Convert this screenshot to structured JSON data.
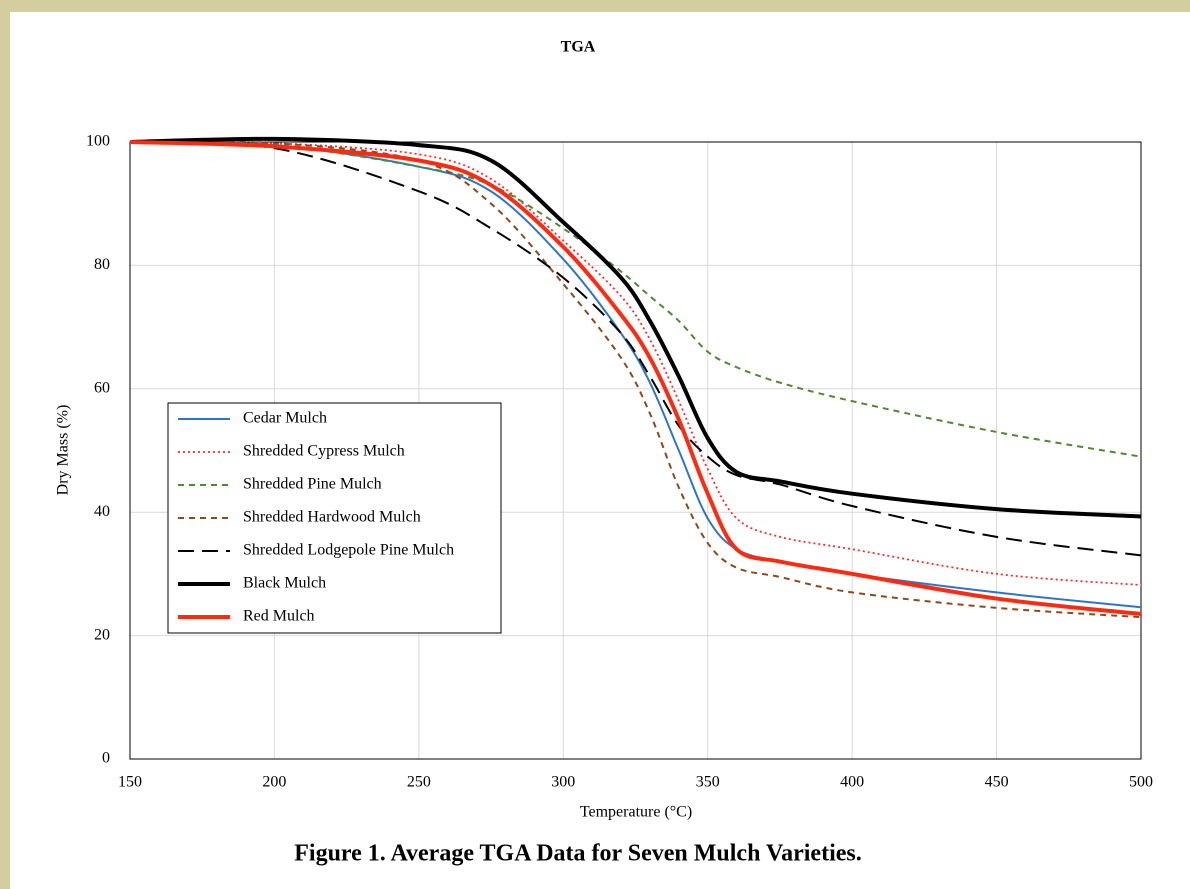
{
  "chart_data": {
    "type": "line",
    "title": "TGA",
    "x_label": "Temperature  (°C)",
    "y_label": "Dry Mass (%)",
    "caption": "Figure 1. Average TGA Data for Seven Mulch Varieties.",
    "x": [
      150,
      200,
      250,
      275,
      300,
      320,
      330,
      340,
      350,
      360,
      375,
      400,
      450,
      500
    ],
    "series": [
      {
        "name": "Cedar Mulch",
        "color": "#2e75c7",
        "line_style": "solid",
        "values": [
          100,
          99.5,
          96,
          92,
          81,
          69,
          61,
          50,
          39,
          34,
          32,
          30,
          27,
          24.6
        ]
      },
      {
        "name": "Shredded Cypress Mulch",
        "color": "#ff2a2a",
        "line_style": "dotted",
        "values": [
          100,
          99.8,
          98,
          94,
          84,
          75,
          68,
          58,
          47,
          39,
          36,
          34,
          30,
          28.2
        ]
      },
      {
        "name": "Shredded Pine Mulch",
        "color": "#4e8a2e",
        "line_style": "dashed",
        "values": [
          100,
          99.5,
          96,
          93,
          86,
          79,
          75,
          71,
          66,
          63.5,
          61,
          58,
          53,
          49
        ]
      },
      {
        "name": "Shredded Hardwood Mulch",
        "color": "#8b4a1c",
        "line_style": "dashed",
        "values": [
          100,
          99.8,
          97,
          90,
          77,
          65,
          56,
          44,
          35,
          31,
          29.5,
          27,
          24.5,
          23
        ]
      },
      {
        "name": "Shredded Lodgepole Pine Mulch",
        "color": "#000000",
        "line_style": "long-dashed",
        "values": [
          100,
          99,
          92,
          86,
          78,
          69,
          62,
          54,
          49,
          46,
          44.5,
          41,
          36,
          33
        ]
      },
      {
        "name": "Black Mulch",
        "color": "#000000",
        "line_style": "bold",
        "values": [
          100,
          100.5,
          99.5,
          97,
          87,
          78,
          71,
          62,
          52,
          46.5,
          45,
          43,
          40.5,
          39.3
        ]
      },
      {
        "name": "Red Mulch",
        "color": "#ff2a10",
        "line_style": "bold",
        "values": [
          100,
          99.3,
          97,
          93,
          83,
          72,
          65,
          55,
          43,
          34,
          32,
          30,
          26,
          23.5
        ]
      }
    ],
    "xlim": [
      150,
      500
    ],
    "xticks": [
      150,
      200,
      250,
      300,
      350,
      400,
      450,
      500
    ],
    "ylim": [
      0,
      100
    ],
    "yticks": [
      0,
      20,
      40,
      60,
      80,
      100
    ],
    "grid": true,
    "legend": "left"
  }
}
